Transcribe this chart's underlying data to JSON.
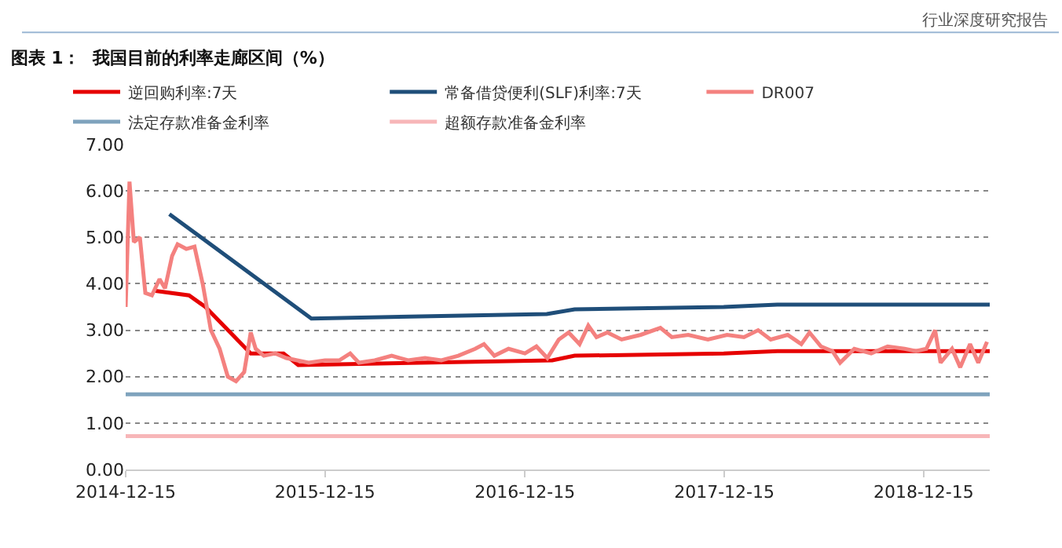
{
  "chart_data": {
    "type": "line",
    "title": "图表 1：  我国目前的利率走廊区间（%）",
    "annotations": [
      "行业深度研究报告"
    ],
    "xlim": [
      "2014-12-15",
      "2019-04-15"
    ],
    "xticks": [
      {
        "value": "2014-12-15",
        "label": "2014-12-15"
      },
      {
        "value": "2015-12-15",
        "label": "2015-12-15"
      },
      {
        "value": "2016-12-15",
        "label": "2016-12-15"
      },
      {
        "value": "2017-12-15",
        "label": "2017-12-15"
      },
      {
        "value": "2018-12-15",
        "label": "2018-12-15"
      }
    ],
    "ylim": [
      0,
      7
    ],
    "yticks": [
      {
        "value": 0,
        "label": "0.00"
      },
      {
        "value": 1,
        "label": "1.00"
      },
      {
        "value": 2,
        "label": "2.00"
      },
      {
        "value": 3,
        "label": "3.00"
      },
      {
        "value": 4,
        "label": "4.00"
      },
      {
        "value": 5,
        "label": "5.00"
      },
      {
        "value": 6,
        "label": "6.00"
      },
      {
        "value": 7,
        "label": "7.00"
      }
    ],
    "grid": "y",
    "legend": "top",
    "marker": "none",
    "line_style": "solid",
    "series": [
      {
        "name": "逆回购利率:7天",
        "color": "#e60000",
        "x": [
          "2015-02-05",
          "2015-04-10",
          "2015-05-10",
          "2015-08-01",
          "2015-09-30",
          "2015-10-27",
          "2017-02-03",
          "2017-03-16",
          "2017-12-14",
          "2018-03-22",
          "2019-04-15"
        ],
        "values": [
          3.85,
          3.75,
          3.5,
          2.5,
          2.5,
          2.25,
          2.35,
          2.45,
          2.5,
          2.55,
          2.55
        ]
      },
      {
        "name": "常备借贷便利(SLF)利率:7天",
        "color": "#1f4e79",
        "x": [
          "2015-03-05",
          "2015-11-20",
          "2017-01-24",
          "2017-03-16",
          "2017-12-14",
          "2018-03-22",
          "2019-04-15"
        ],
        "values": [
          5.5,
          3.25,
          3.35,
          3.45,
          3.5,
          3.55,
          3.55
        ]
      },
      {
        "name": "DR007",
        "color": "#f4817f",
        "x": [
          "2014-12-15",
          "2014-12-22",
          "2014-12-30",
          "2015-01-10",
          "2015-01-20",
          "2015-02-01",
          "2015-02-15",
          "2015-02-25",
          "2015-03-10",
          "2015-03-20",
          "2015-04-05",
          "2015-04-20",
          "2015-05-05",
          "2015-05-20",
          "2015-06-05",
          "2015-06-20",
          "2015-07-05",
          "2015-07-20",
          "2015-08-01",
          "2015-08-10",
          "2015-08-25",
          "2015-09-15",
          "2015-10-05",
          "2015-10-25",
          "2015-11-15",
          "2015-12-15",
          "2016-01-10",
          "2016-01-30",
          "2016-02-15",
          "2016-03-15",
          "2016-04-15",
          "2016-05-15",
          "2016-06-15",
          "2016-07-15",
          "2016-08-15",
          "2016-09-15",
          "2016-10-01",
          "2016-10-20",
          "2016-11-15",
          "2016-12-15",
          "2017-01-05",
          "2017-01-25",
          "2017-02-15",
          "2017-03-05",
          "2017-03-25",
          "2017-04-10",
          "2017-04-25",
          "2017-05-15",
          "2017-06-10",
          "2017-07-15",
          "2017-08-20",
          "2017-09-10",
          "2017-10-10",
          "2017-11-15",
          "2017-12-20",
          "2018-01-20",
          "2018-02-15",
          "2018-03-10",
          "2018-04-10",
          "2018-05-05",
          "2018-05-20",
          "2018-06-10",
          "2018-07-01",
          "2018-07-15",
          "2018-08-10",
          "2018-09-10",
          "2018-10-10",
          "2018-11-10",
          "2018-12-01",
          "2018-12-20",
          "2019-01-05",
          "2019-01-15",
          "2019-02-05",
          "2019-02-20",
          "2019-03-10",
          "2019-03-25",
          "2019-04-10"
        ],
        "values": [
          3.5,
          6.2,
          4.9,
          5.0,
          3.8,
          3.75,
          4.1,
          3.9,
          4.6,
          4.85,
          4.75,
          4.8,
          4.0,
          3.0,
          2.6,
          2.0,
          1.9,
          2.1,
          2.95,
          2.6,
          2.45,
          2.5,
          2.4,
          2.35,
          2.3,
          2.35,
          2.35,
          2.5,
          2.3,
          2.35,
          2.45,
          2.35,
          2.4,
          2.35,
          2.45,
          2.6,
          2.7,
          2.45,
          2.6,
          2.5,
          2.65,
          2.4,
          2.8,
          2.95,
          2.7,
          3.1,
          2.85,
          2.95,
          2.8,
          2.9,
          3.05,
          2.85,
          2.9,
          2.8,
          2.9,
          2.85,
          3.0,
          2.8,
          2.9,
          2.7,
          2.95,
          2.65,
          2.55,
          2.3,
          2.6,
          2.5,
          2.65,
          2.6,
          2.55,
          2.6,
          3.0,
          2.3,
          2.6,
          2.2,
          2.7,
          2.3,
          2.75
        ]
      },
      {
        "name": "法定存款准备金利率",
        "color": "#7fa3bd",
        "x": [
          "2014-12-15",
          "2019-04-15"
        ],
        "values": [
          1.62,
          1.62
        ]
      },
      {
        "name": "超额存款准备金利率",
        "color": "#f7b6b8",
        "x": [
          "2014-12-15",
          "2019-04-15"
        ],
        "values": [
          0.72,
          0.72
        ]
      }
    ]
  }
}
